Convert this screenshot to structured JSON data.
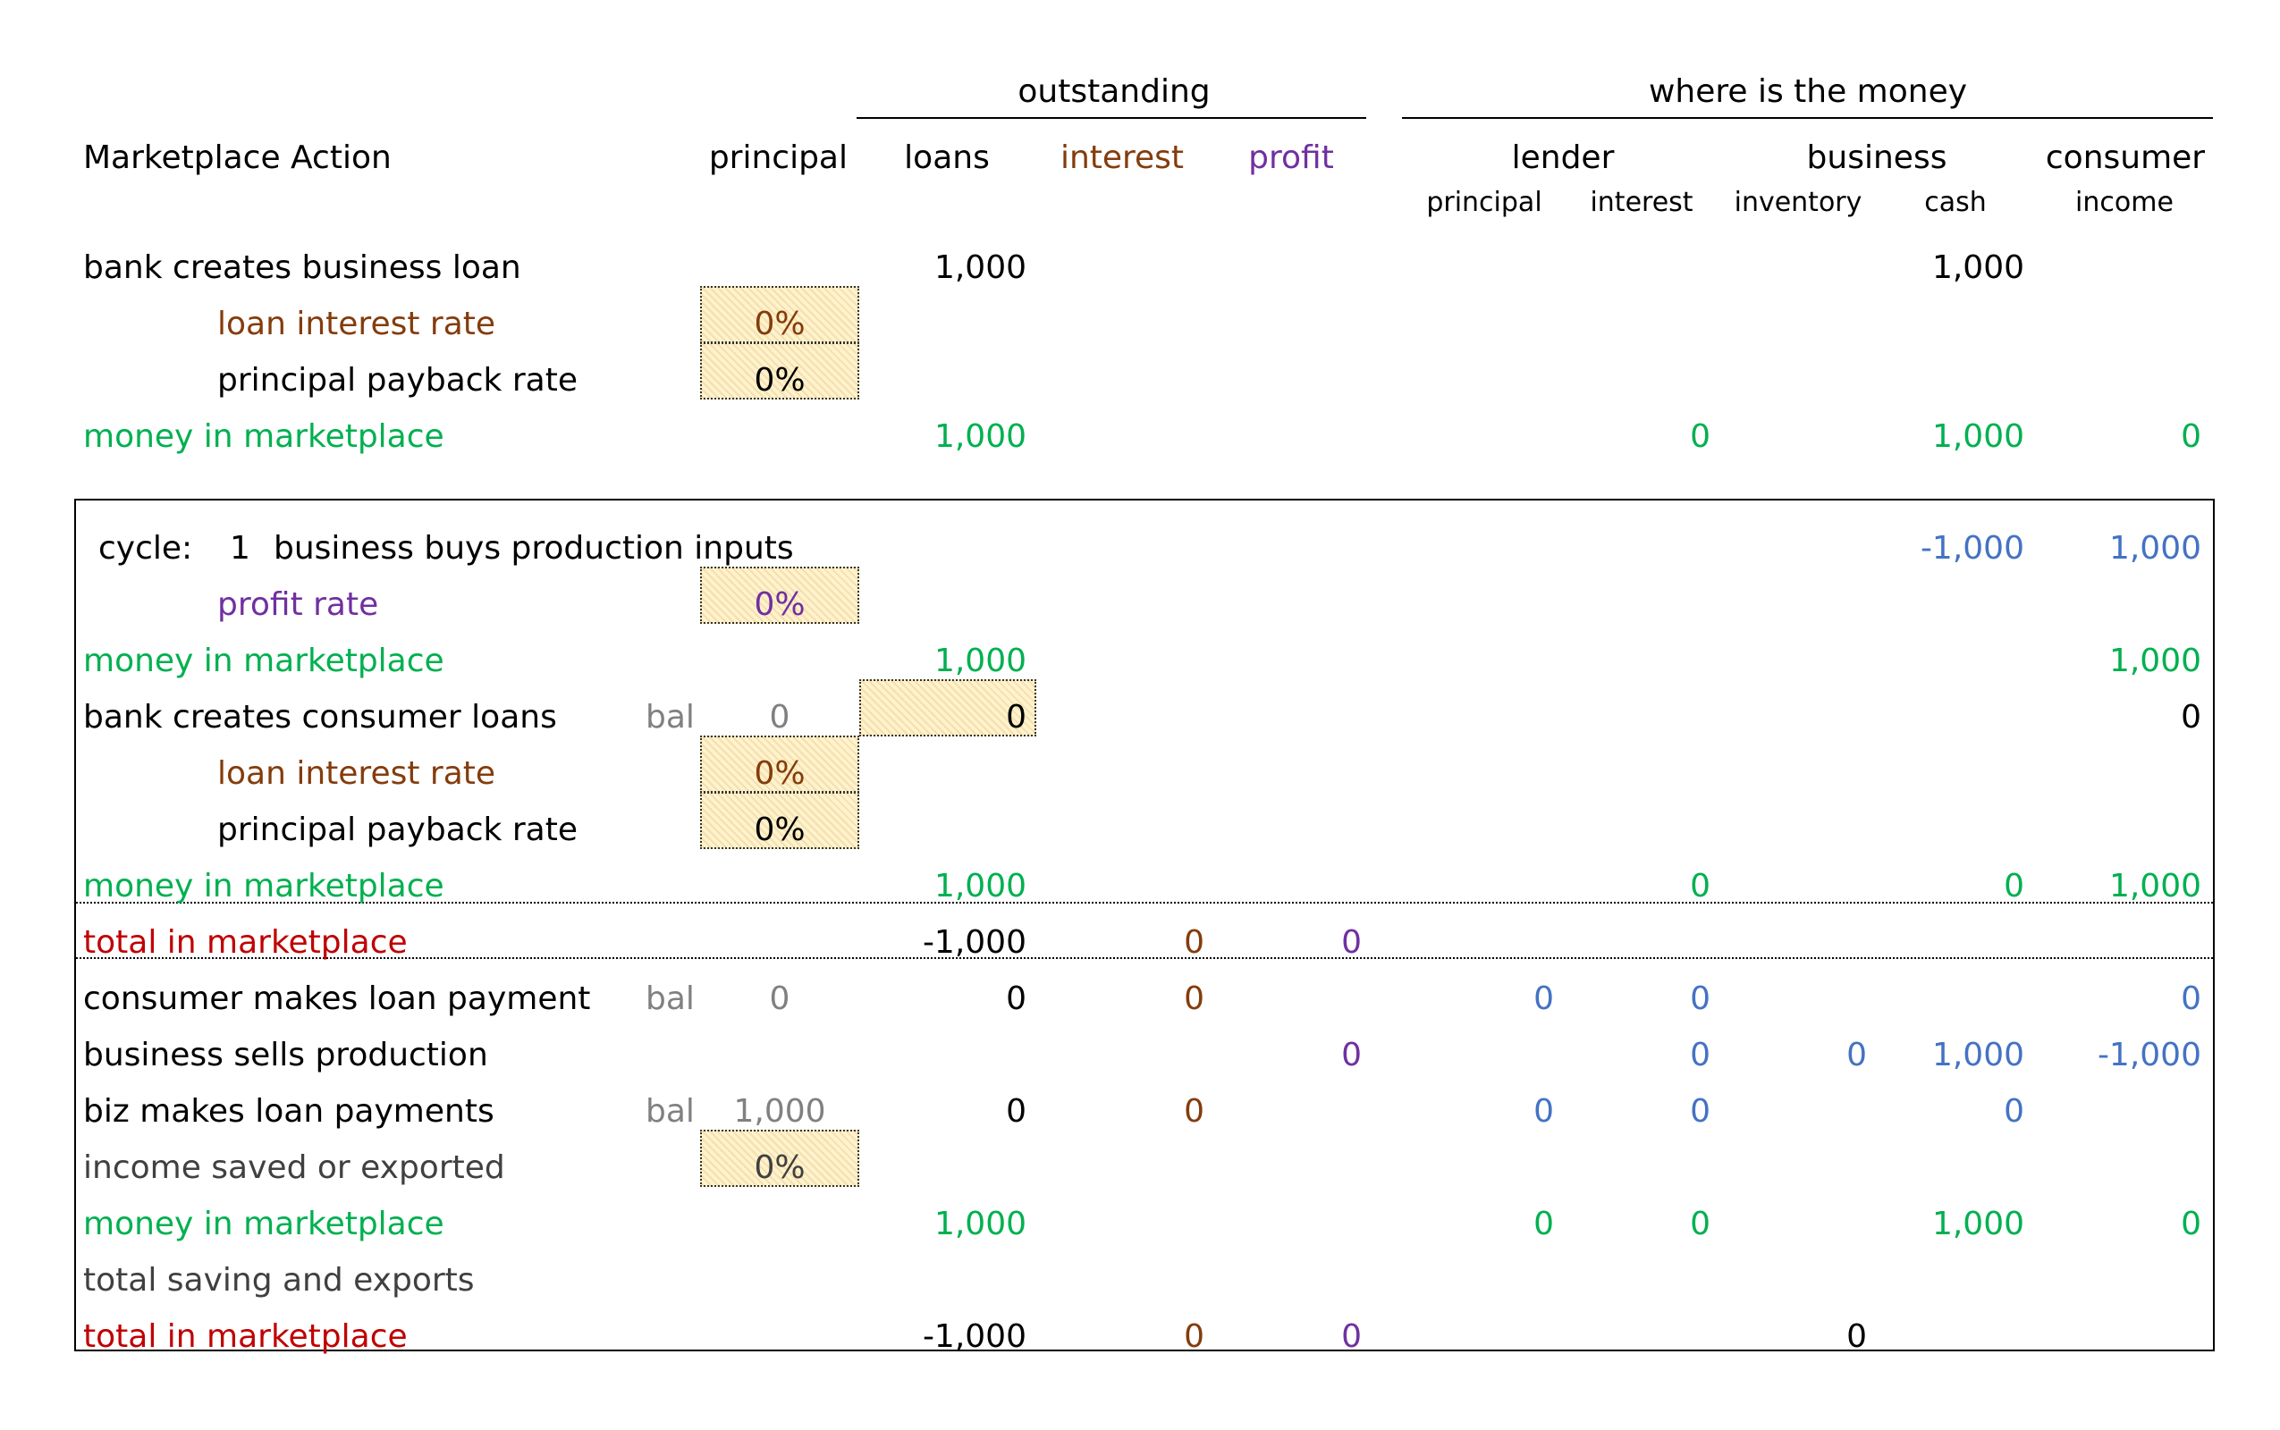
{
  "header": {
    "outstanding": "outstanding",
    "where_is_the_money": "where is the money",
    "marketplace_action": "Marketplace Action",
    "principal": "principal",
    "loans": "loans",
    "interest": "interest",
    "profit": "profit",
    "lender": "lender",
    "business": "business",
    "consumer": "consumer",
    "sub_principal": "principal",
    "sub_interest": "interest",
    "sub_inventory": "inventory",
    "sub_cash": "cash",
    "sub_income": "income"
  },
  "setup": {
    "business_loan_label": "bank creates business loan",
    "business_loan_loans": "1,000",
    "business_loan_cash": "1,000",
    "loan_interest_rate_label": "loan interest rate",
    "loan_interest_rate_value": "0%",
    "principal_payback_rate_label": "principal payback rate",
    "principal_payback_rate_value": "0%",
    "money_label": "money in marketplace",
    "money_loans": "1,000",
    "money_lender_interest": "0",
    "money_cash": "1,000",
    "money_income": "0"
  },
  "cycle": {
    "cycle_label": "cycle:",
    "cycle_number": "1",
    "buys_label": "business buys production inputs",
    "buys_cash": "-1,000",
    "buys_income": "1,000",
    "profit_rate_label": "profit rate",
    "profit_rate_value": "0%",
    "money1_label": "money in marketplace",
    "money1_loans": "1,000",
    "money1_income": "1,000",
    "consumer_loans_label": "bank creates consumer loans",
    "consumer_loans_bal_label": "bal",
    "consumer_loans_bal": "0",
    "consumer_loans_input": "0",
    "consumer_loans_income": "0",
    "loan_interest_rate_label": "loan interest rate",
    "loan_interest_rate_value": "0%",
    "principal_payback_rate_label": "principal payback rate",
    "principal_payback_rate_value": "0%",
    "money2_label": "money in marketplace",
    "money2_loans": "1,000",
    "money2_lender_interest": "0",
    "money2_cash": "0",
    "money2_income": "1,000",
    "total1_label": "total in marketplace",
    "total1_loans": "-1,000",
    "total1_interest": "0",
    "total1_profit": "0",
    "consumer_payment_label": "consumer makes loan payment",
    "consumer_payment_bal_label": "bal",
    "consumer_payment_bal": "0",
    "consumer_payment_loans": "0",
    "consumer_payment_interest": "0",
    "consumer_payment_lender_principal": "0",
    "consumer_payment_lender_interest": "0",
    "consumer_payment_income": "0",
    "sells_label": "business sells production",
    "sells_profit": "0",
    "sells_lender_interest": "0",
    "sells_inventory": "0",
    "sells_cash": "1,000",
    "sells_income": "-1,000",
    "biz_payment_label": "biz makes loan payments",
    "biz_payment_bal_label": "bal",
    "biz_payment_bal": "1,000",
    "biz_payment_loans": "0",
    "biz_payment_interest": "0",
    "biz_payment_lender_principal": "0",
    "biz_payment_lender_interest": "0",
    "biz_payment_cash": "0",
    "saved_label": "income saved or exported",
    "saved_value": "0%",
    "money3_label": "money in marketplace",
    "money3_loans": "1,000",
    "money3_lender_principal": "0",
    "money3_lender_interest": "0",
    "money3_cash": "1,000",
    "money3_income": "0",
    "saving_label": "total saving and exports",
    "total2_label": "total in marketplace",
    "total2_loans": "-1,000",
    "total2_interest": "0",
    "total2_profit": "0",
    "total2_inventory": "0"
  },
  "colors": {
    "interest": "#843c0c",
    "profit": "#7030a0",
    "money": "#00b050",
    "total": "#c00000",
    "flow": "#4472c4",
    "bal": "#808080",
    "input_fill": "#fff2cc"
  }
}
